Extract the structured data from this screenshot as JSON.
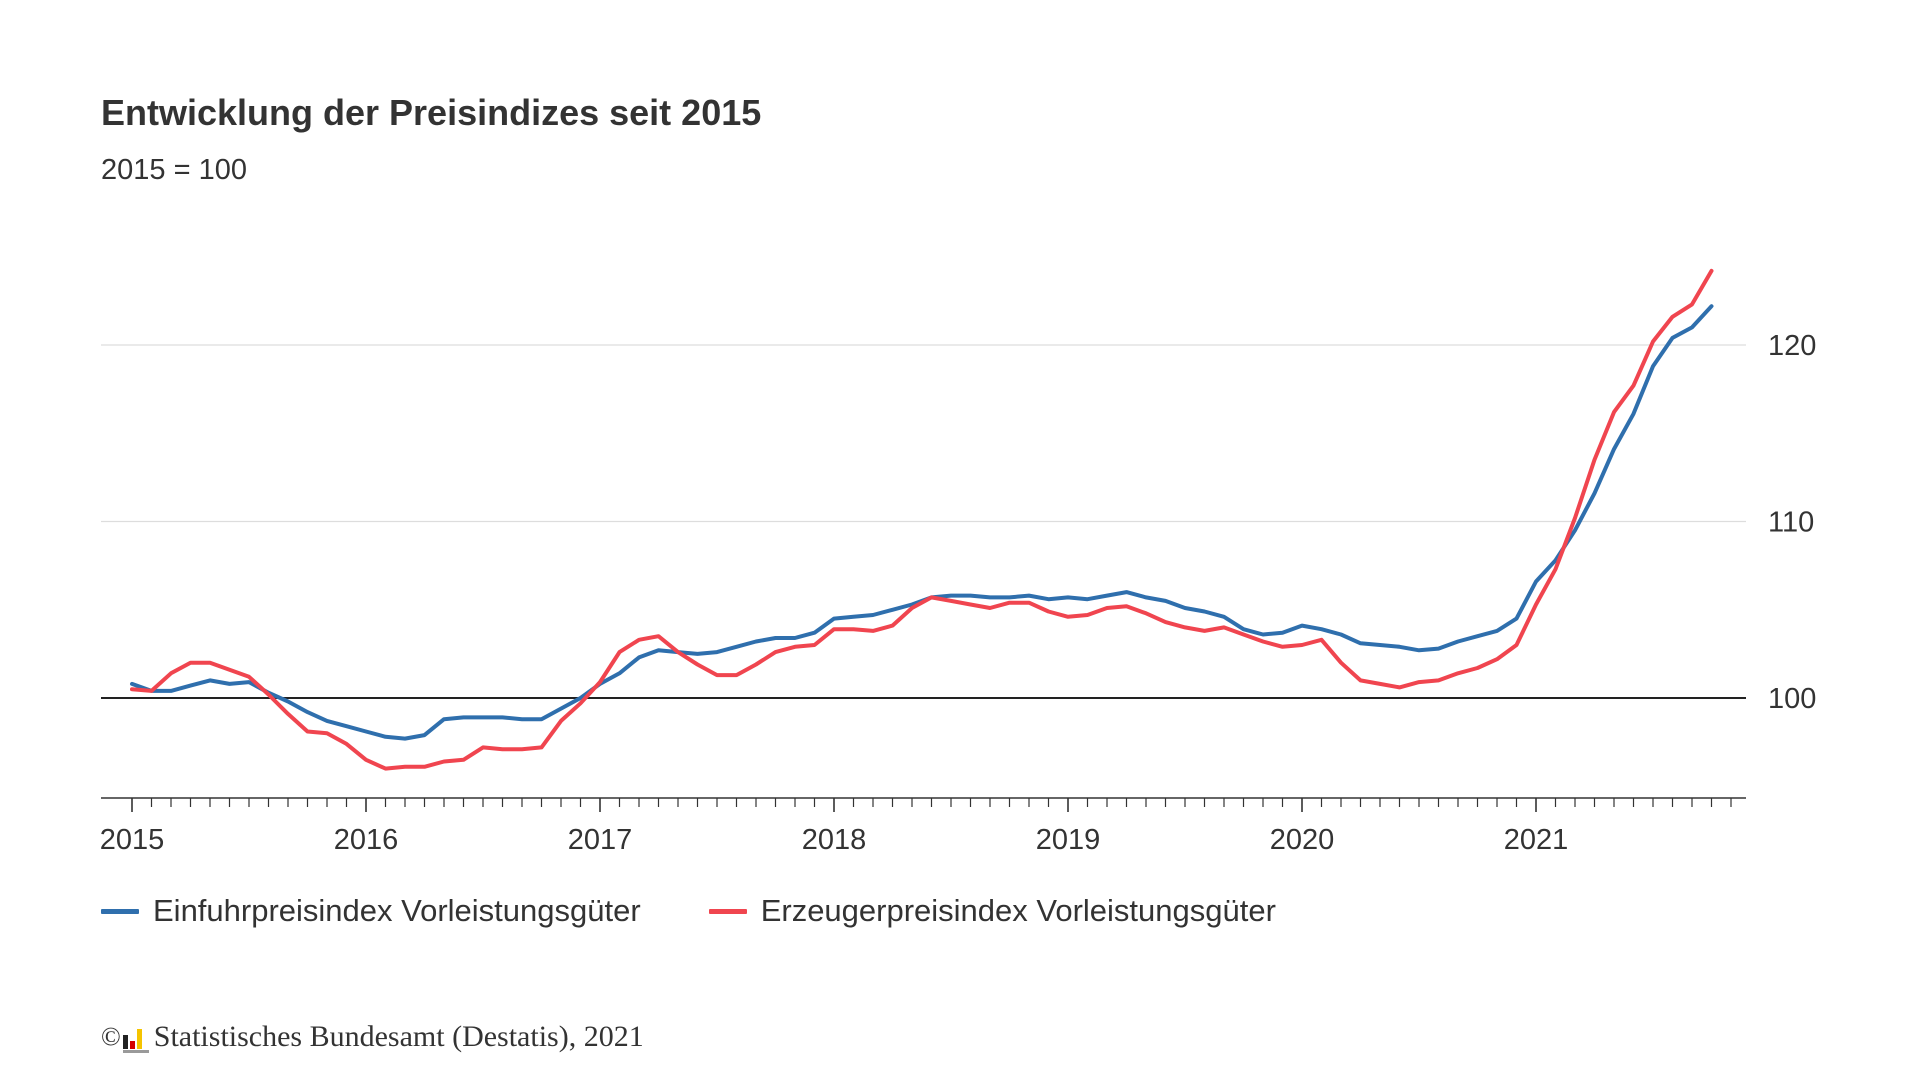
{
  "header": {
    "title": "Entwicklung der Preisindizes seit 2015",
    "subtitle": "2015 = 100"
  },
  "legend": {
    "items": [
      {
        "label": "Einfuhrpreisindex Vorleistungsgüter",
        "color": "#2f6fad"
      },
      {
        "label": "Erzeugerpreisindex Vorleistungsgüter",
        "color": "#f0454f"
      }
    ]
  },
  "source": {
    "copyright": "©",
    "text": "Statistisches Bundesamt (Destatis), 2021",
    "logo_colors": [
      "#222222",
      "#d40000",
      "#f5c400"
    ]
  },
  "chart_data": {
    "type": "line",
    "title": "Entwicklung der Preisindizes seit 2015",
    "subtitle": "2015 = 100",
    "xlabel": "",
    "ylabel": "",
    "x_start": "2015-01",
    "frequency": "monthly",
    "xlim": [
      0,
      81.5
    ],
    "ylim": [
      94.5,
      125
    ],
    "yticks": [
      100,
      110,
      120
    ],
    "y_axis_position": "right",
    "baseline": 100,
    "grid": true,
    "xticks": [
      {
        "pos": 0,
        "label": "2015"
      },
      {
        "pos": 12,
        "label": "2016"
      },
      {
        "pos": 24,
        "label": "2017"
      },
      {
        "pos": 36,
        "label": "2018"
      },
      {
        "pos": 48,
        "label": "2019"
      },
      {
        "pos": 60,
        "label": "2020"
      },
      {
        "pos": 72,
        "label": "2021"
      }
    ],
    "legend_position": "bottom",
    "series": [
      {
        "name": "Einfuhrpreisindex Vorleistungsgüter",
        "color": "#2f6fad",
        "values": [
          100.8,
          100.4,
          100.4,
          100.7,
          101.0,
          100.8,
          100.9,
          100.3,
          99.8,
          99.2,
          98.7,
          98.4,
          98.1,
          97.8,
          97.7,
          97.9,
          98.8,
          98.9,
          98.9,
          98.9,
          98.8,
          98.8,
          99.4,
          100.0,
          100.8,
          101.4,
          102.3,
          102.7,
          102.6,
          102.5,
          102.6,
          102.9,
          103.2,
          103.4,
          103.4,
          103.7,
          104.5,
          104.6,
          104.7,
          105.0,
          105.3,
          105.7,
          105.8,
          105.8,
          105.7,
          105.7,
          105.8,
          105.6,
          105.7,
          105.6,
          105.8,
          106.0,
          105.7,
          105.5,
          105.1,
          104.9,
          104.6,
          103.9,
          103.6,
          103.7,
          104.1,
          103.9,
          103.6,
          103.1,
          103.0,
          102.9,
          102.7,
          102.8,
          103.2,
          103.5,
          103.8,
          104.5,
          106.6,
          107.8,
          109.5,
          111.6,
          114.1,
          116.1,
          118.8,
          120.4,
          121.0,
          122.2
        ]
      },
      {
        "name": "Erzeugerpreisindex Vorleistungsgüter",
        "color": "#f0454f",
        "values": [
          100.5,
          100.4,
          101.4,
          102.0,
          102.0,
          101.6,
          101.2,
          100.2,
          99.1,
          98.1,
          98.0,
          97.4,
          96.5,
          96.0,
          96.1,
          96.1,
          96.4,
          96.5,
          97.2,
          97.1,
          97.1,
          97.2,
          98.7,
          99.7,
          100.9,
          102.6,
          103.3,
          103.5,
          102.6,
          101.9,
          101.3,
          101.3,
          101.9,
          102.6,
          102.9,
          103.0,
          103.9,
          103.9,
          103.8,
          104.1,
          105.1,
          105.7,
          105.5,
          105.3,
          105.1,
          105.4,
          105.4,
          104.9,
          104.6,
          104.7,
          105.1,
          105.2,
          104.8,
          104.3,
          104.0,
          103.8,
          104.0,
          103.6,
          103.2,
          102.9,
          103.0,
          103.3,
          102.0,
          101.0,
          100.8,
          100.6,
          100.9,
          101.0,
          101.4,
          101.7,
          102.2,
          103.0,
          105.3,
          107.3,
          110.2,
          113.5,
          116.2,
          117.7,
          120.2,
          121.6,
          122.3,
          124.2
        ]
      }
    ]
  }
}
